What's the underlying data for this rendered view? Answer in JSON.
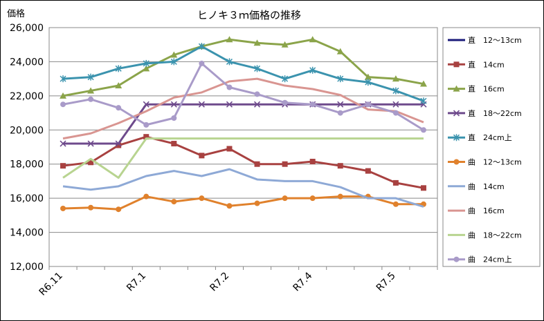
{
  "chart_data": {
    "type": "line",
    "title": "ヒノキ３ｍ価格の推移",
    "ylabel": "価格",
    "xlabel": "",
    "ylim": [
      12000,
      26000
    ],
    "yticks": [
      "12,000",
      "14,000",
      "16,000",
      "18,000",
      "20,000",
      "22,000",
      "24,000",
      "26,000"
    ],
    "x_tick_labels": [
      "R6.11",
      "R7.1",
      "R7.2",
      "R7.4",
      "R7.5"
    ],
    "x_tick_positions": [
      0,
      3,
      6,
      9,
      12
    ],
    "point_count": 14,
    "legend_position": "right",
    "grid": "horizontal",
    "series": [
      {
        "name": "直　12～13cm",
        "color": "#1a1a7a",
        "marker": "none",
        "values": [
          null,
          null,
          null,
          null,
          null,
          null,
          null,
          null,
          null,
          null,
          null,
          null,
          null,
          null
        ]
      },
      {
        "name": "直　14cm",
        "color": "#a84140",
        "marker": "square",
        "values": [
          17900,
          18100,
          19100,
          19600,
          19200,
          18500,
          18900,
          18000,
          18000,
          18150,
          17900,
          17600,
          16900,
          16600
        ]
      },
      {
        "name": "直　16cm",
        "color": "#8ba44a",
        "marker": "triangle",
        "values": [
          22000,
          22300,
          22600,
          23600,
          24400,
          24900,
          25300,
          25100,
          25000,
          25300,
          24600,
          23100,
          23000,
          22700
        ]
      },
      {
        "name": "直　18～22cm",
        "color": "#6e4a8c",
        "marker": "x",
        "values": [
          19200,
          19200,
          19200,
          21500,
          21500,
          21500,
          21500,
          21500,
          21500,
          21500,
          21500,
          21500,
          21500,
          21500
        ]
      },
      {
        "name": "直　24cm上",
        "color": "#3b93ae",
        "marker": "star",
        "values": [
          23000,
          23100,
          23600,
          23900,
          24000,
          24900,
          24000,
          23600,
          23000,
          23500,
          23000,
          22800,
          22300,
          21700
        ]
      },
      {
        "name": "曲　12～13cm",
        "color": "#e0812c",
        "marker": "circle",
        "values": [
          15400,
          15450,
          15350,
          16100,
          15800,
          16000,
          15550,
          15700,
          16000,
          16000,
          16100,
          16100,
          15650,
          15650
        ]
      },
      {
        "name": "曲　14cm",
        "color": "#8ea9d6",
        "marker": "none",
        "values": [
          16700,
          16500,
          16700,
          17300,
          17600,
          17300,
          17700,
          17100,
          17000,
          17000,
          16650,
          16000,
          16000,
          15500
        ]
      },
      {
        "name": "曲　16cm",
        "color": "#d99591",
        "marker": "none",
        "values": [
          19500,
          19800,
          20400,
          21100,
          21900,
          22200,
          22850,
          23000,
          22600,
          22400,
          22050,
          21200,
          21100,
          20450
        ]
      },
      {
        "name": "曲　18～22cm",
        "color": "#b8d490",
        "marker": "none",
        "values": [
          17200,
          18300,
          17200,
          19500,
          19500,
          19500,
          19500,
          19500,
          19500,
          19500,
          19500,
          19500,
          19500,
          19500
        ]
      },
      {
        "name": "曲　24cm上",
        "color": "#a99bc9",
        "marker": "circle",
        "values": [
          21500,
          21800,
          21300,
          20300,
          20700,
          23900,
          22500,
          22100,
          21600,
          21500,
          21000,
          21500,
          21000,
          20000
        ]
      }
    ]
  }
}
